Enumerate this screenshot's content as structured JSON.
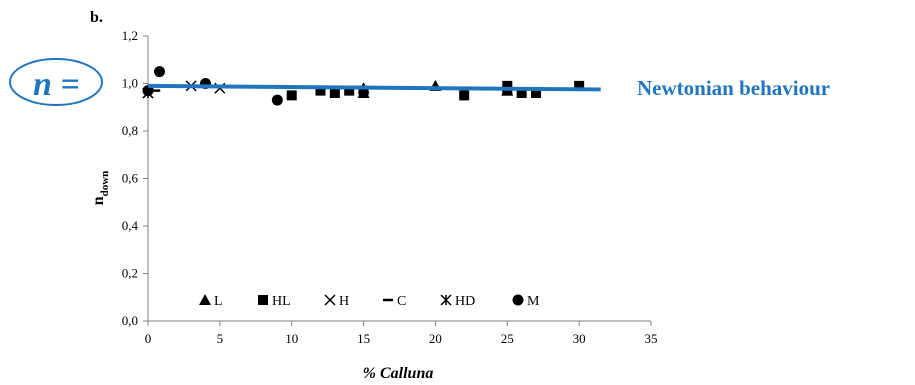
{
  "panel_label": "b.",
  "n_label": "n =",
  "chart_data": {
    "type": "scatter",
    "xlabel_prefix": "% ",
    "xlabel_italic": "Calluna",
    "ylabel_main": "n",
    "ylabel_sub": "down",
    "xlim": [
      0,
      35
    ],
    "ylim": [
      0,
      1.2
    ],
    "xticks": [
      "0",
      "5",
      "10",
      "15",
      "20",
      "25",
      "30",
      "35"
    ],
    "yticks": [
      "0,0",
      "0,2",
      "0,4",
      "0,6",
      "0,8",
      "1,0",
      "1,2"
    ],
    "xtick_values": [
      0,
      5,
      10,
      15,
      20,
      25,
      30,
      35
    ],
    "ytick_values": [
      0,
      0.2,
      0.4,
      0.6,
      0.8,
      1.0,
      1.2
    ],
    "grid": false,
    "legend_position": "bottom-inside",
    "series": [
      {
        "name": "L",
        "marker": "triangle",
        "points": [
          [
            15,
            0.98
          ],
          [
            15,
            0.96
          ],
          [
            20,
            0.99
          ],
          [
            25,
            0.97
          ]
        ]
      },
      {
        "name": "HL",
        "marker": "square",
        "points": [
          [
            10,
            0.95
          ],
          [
            12,
            0.97
          ],
          [
            13,
            0.96
          ],
          [
            14,
            0.97
          ],
          [
            15,
            0.97
          ],
          [
            22,
            0.95
          ],
          [
            25,
            0.99
          ],
          [
            25,
            0.97
          ],
          [
            26,
            0.96
          ],
          [
            27,
            0.96
          ],
          [
            30,
            0.99
          ]
        ]
      },
      {
        "name": "H",
        "marker": "x",
        "points": [
          [
            0,
            0.96
          ],
          [
            3,
            0.99
          ],
          [
            5,
            0.98
          ]
        ]
      },
      {
        "name": "C",
        "marker": "dash",
        "points": [
          [
            0.5,
            0.97
          ]
        ]
      },
      {
        "name": "HD",
        "marker": "asterisk",
        "points": [
          [
            0,
            0.96
          ]
        ]
      },
      {
        "name": "M",
        "marker": "circle",
        "points": [
          [
            0,
            0.97
          ],
          [
            0.8,
            1.05
          ],
          [
            4,
            1.0
          ],
          [
            9,
            0.93
          ]
        ]
      }
    ],
    "trendline": {
      "x": [
        0,
        31.5
      ],
      "y": [
        0.99,
        0.975
      ],
      "color": "#1f75c0"
    },
    "annotation": "Newtonian behaviour",
    "accent_color": "#1f75c0"
  }
}
